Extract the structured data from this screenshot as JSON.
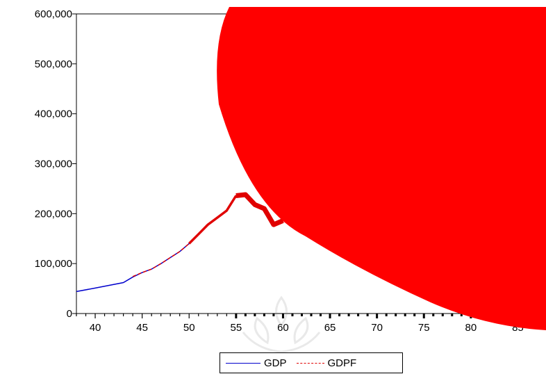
{
  "colors": {
    "gdp": "#0000cc",
    "gdpf": "#e00000",
    "overlay": "#ff0000"
  },
  "chart_data": {
    "type": "line",
    "title": "",
    "xlabel": "",
    "ylabel": "",
    "xlim": [
      38,
      88
    ],
    "ylim": [
      0,
      600000
    ],
    "xticks": [
      40,
      45,
      50,
      55,
      60,
      65,
      70,
      75,
      80,
      85
    ],
    "xtick_labels": [
      "40",
      "45",
      "50",
      "55",
      "60",
      "65",
      "70",
      "75",
      "80",
      "85"
    ],
    "yticks": [
      0,
      100000,
      200000,
      300000,
      400000,
      500000,
      600000
    ],
    "ytick_labels": [
      "0",
      "100,000",
      "200,000",
      "300,000",
      "400,000",
      "500,000",
      "600,000"
    ],
    "grid": false,
    "legend_position": "bottom-center",
    "series": [
      {
        "name": "GDP",
        "style": "solid",
        "x": [
          38,
          40,
          43,
          44,
          45,
          46,
          47,
          48,
          49,
          50,
          51,
          52,
          53,
          54,
          55,
          56,
          57,
          58,
          59,
          60
        ],
        "y": [
          44000,
          51000,
          62000,
          73000,
          82000,
          89000,
          100000,
          112000,
          124000,
          140000,
          159000,
          178000,
          192000,
          206000,
          236000,
          238000,
          218000,
          210000,
          178000,
          186000
        ]
      },
      {
        "name": "GDPF",
        "style": "dashed",
        "x": [
          44,
          45,
          46,
          47,
          48,
          49,
          50,
          51,
          52,
          53,
          54,
          55,
          56,
          57,
          58,
          59,
          60
        ],
        "y": [
          74000,
          82000,
          89000,
          100000,
          112000,
          124000,
          140000,
          159000,
          178000,
          192000,
          206000,
          236000,
          238000,
          218000,
          210000,
          178000,
          186000
        ]
      }
    ],
    "legend": [
      "GDP",
      "GDPF"
    ]
  }
}
